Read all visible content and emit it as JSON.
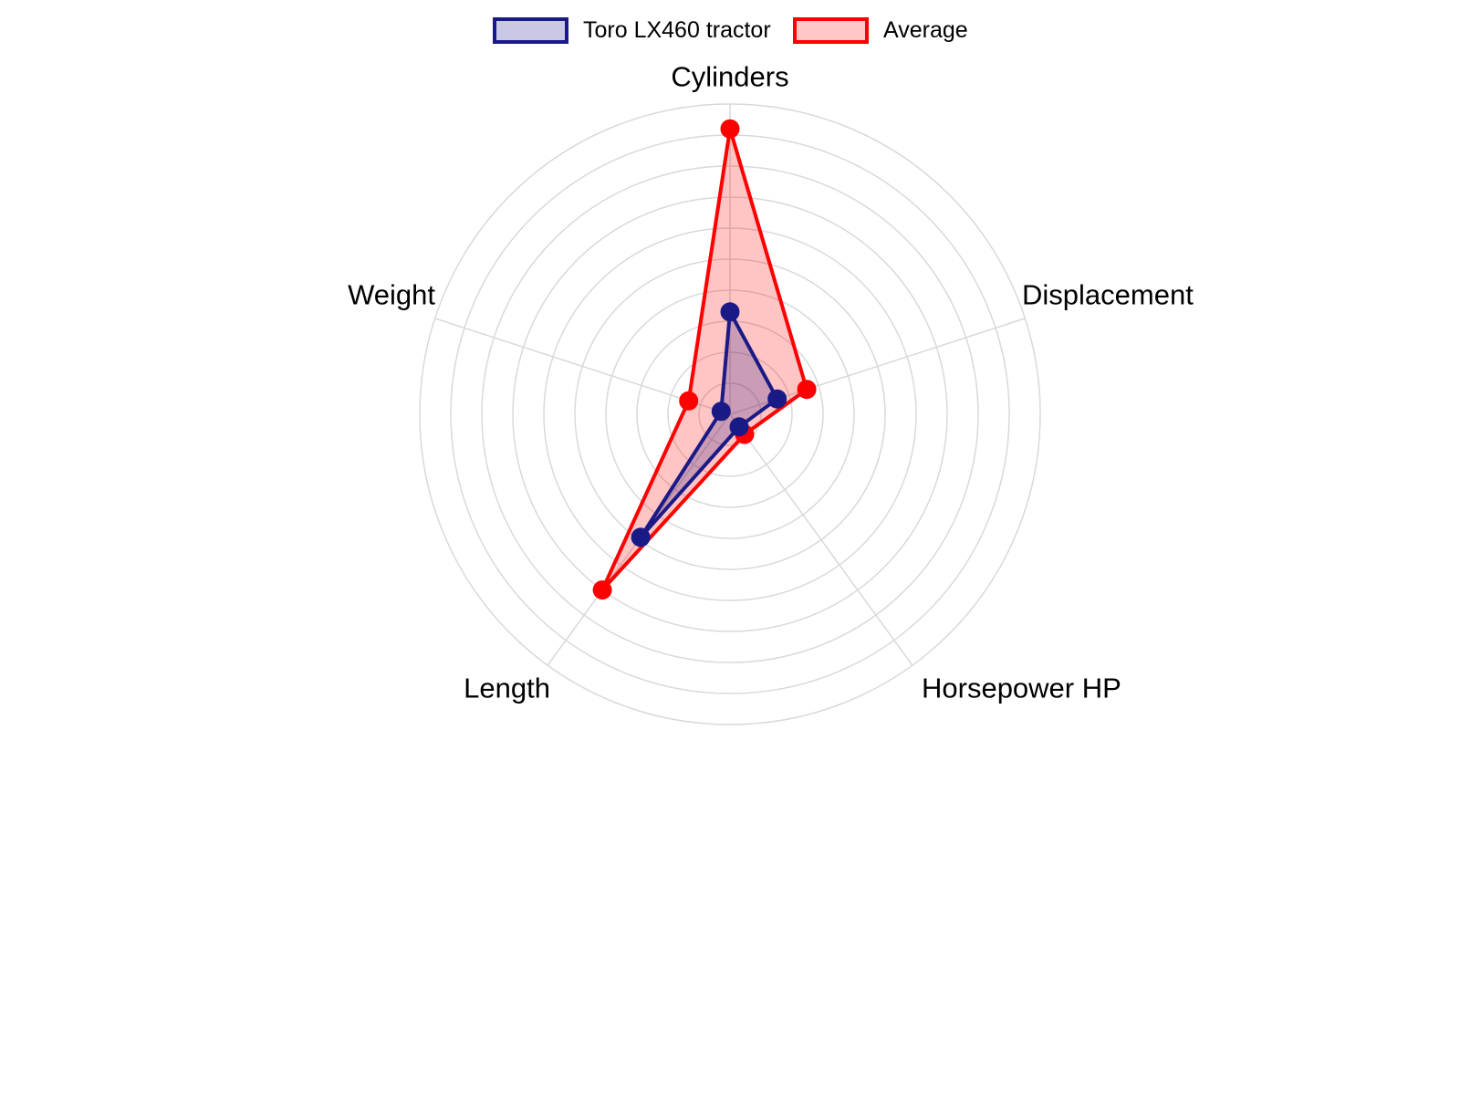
{
  "chart_data": {
    "type": "radar",
    "title": "",
    "categories": [
      "Cylinders",
      "Displacement",
      "Horsepower HP",
      "Length",
      "Weight"
    ],
    "series": [
      {
        "name": "Toro LX460 tractor",
        "color": "#1a1a87",
        "legend_fill": "#c9c9e6",
        "values": [
          0.33,
          0.16,
          0.05,
          0.49,
          0.03
        ]
      },
      {
        "name": "Average",
        "color": "#ff0000",
        "legend_fill": "#ffc7c7",
        "values": [
          0.92,
          0.26,
          0.08,
          0.7,
          0.14
        ]
      }
    ],
    "radial_range": [
      0,
      1
    ],
    "grid": {
      "show": true,
      "rings": 10,
      "color": "#d9d9d9"
    },
    "legend_position": "top",
    "fill_opacity": 0.23,
    "axis_label_color": "#000000"
  }
}
